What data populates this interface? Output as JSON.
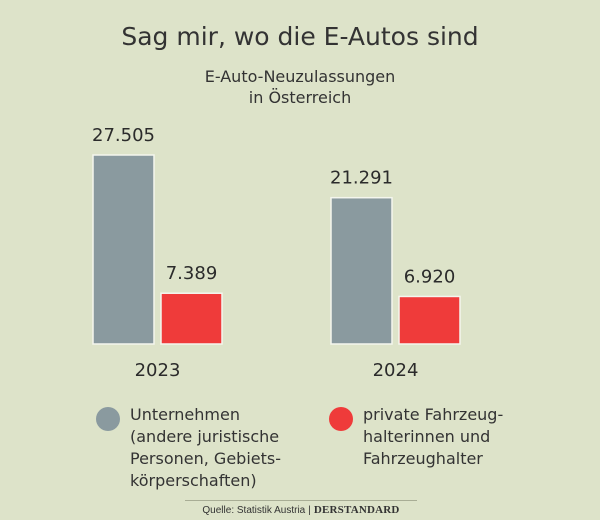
{
  "chart_data": {
    "type": "bar",
    "title": "Sag mir, wo die E-Autos sind",
    "subtitle": "E-Auto-Neuzulassungen\nin Österreich",
    "categories": [
      "2023",
      "2024"
    ],
    "series": [
      {
        "name": "Unternehmen\n(andere juristische\nPersonen, Gebiets-\nkörperschaften)",
        "values": [
          27505,
          21291
        ],
        "labels": [
          "27.505",
          "21.291"
        ],
        "color": "#8a9a9f"
      },
      {
        "name": "private Fahrzeug-\nhalterinnen und\nFahrzeughalter",
        "values": [
          7389,
          6920
        ],
        "labels": [
          "7.389",
          "6.920"
        ],
        "color": "#ef3b3a"
      }
    ],
    "ylim": [
      0,
      27505
    ],
    "grid": false,
    "legend": "bottom"
  },
  "source": {
    "label": "Quelle: Statistik Austria",
    "separator": "|",
    "brand": "DERSTANDARD"
  }
}
